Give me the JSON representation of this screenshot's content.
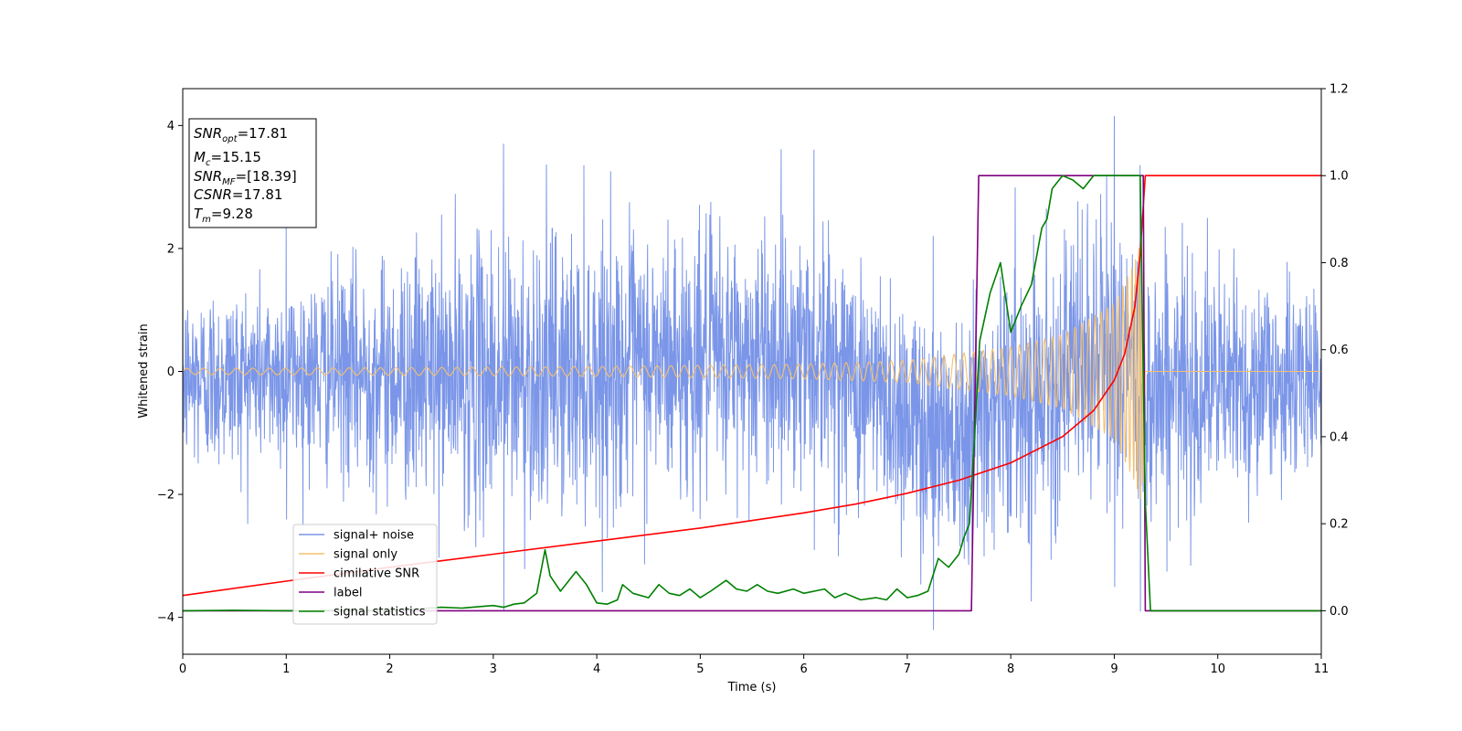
{
  "chart_data": {
    "type": "line",
    "xlabel": "Time (s)",
    "ylabel": "Whitened strain",
    "xlim": [
      0,
      11
    ],
    "ylim_left": [
      -4.6,
      4.6
    ],
    "ylim_right": [
      -0.1,
      1.2
    ],
    "x_ticks": [
      "0",
      "1",
      "2",
      "3",
      "4",
      "5",
      "6",
      "7",
      "8",
      "9",
      "10",
      "11"
    ],
    "y_ticks_left": [
      "−4",
      "−2",
      "0",
      "2",
      "4"
    ],
    "y_ticks_right": [
      "0.0",
      "0.2",
      "0.4",
      "0.6",
      "0.8",
      "1.0",
      "1.2"
    ],
    "legend_placement": "lower-left",
    "info_box": {
      "snr_opt": {
        "base": "SNR",
        "sub": "opt",
        "value": "=17.81"
      },
      "mc": {
        "base": "M",
        "sub": "c",
        "value": "=15.15"
      },
      "snr_mf": {
        "base": "SNR",
        "sub": "MF",
        "value": "=[18.39]"
      },
      "csnr": {
        "base": "CSNR",
        "value": "=17.81"
      },
      "tm": {
        "base": "T",
        "sub": "m",
        "value": "=9.28"
      }
    },
    "series": [
      {
        "name": "signal+ noise",
        "axis": "left",
        "color": "#7b96e8",
        "description": "noisy whitened strain, roughly within [-2.6, 2.6] with spikes to about 4.2 and -4.2",
        "envelope_points": [
          [
            0.0,
            -2.6,
            2.3
          ],
          [
            1.0,
            -2.4,
            2.4
          ],
          [
            3.1,
            -3.9,
            3.7
          ],
          [
            6.1,
            -2.9,
            3.6
          ],
          [
            7.25,
            -4.2,
            2.2
          ],
          [
            9.0,
            -3.5,
            4.15
          ],
          [
            9.25,
            -3.9,
            3.35
          ],
          [
            11.0,
            -2.4,
            2.1
          ]
        ]
      },
      {
        "name": "signal only",
        "axis": "left",
        "color": "#f5c06e",
        "description": "chirp waveform: amplitude grows from ~0.05 at t=0 to ~2.2 near t=9.25, then zero",
        "amplitude_points": [
          [
            0,
            0.05
          ],
          [
            2,
            0.06
          ],
          [
            4,
            0.08
          ],
          [
            6,
            0.12
          ],
          [
            7,
            0.18
          ],
          [
            8,
            0.4
          ],
          [
            8.5,
            0.6
          ],
          [
            9.0,
            1.1
          ],
          [
            9.2,
            1.8
          ],
          [
            9.27,
            2.2
          ],
          [
            9.3,
            0.0
          ],
          [
            11,
            0.0
          ]
        ]
      },
      {
        "name": "cimilative SNR",
        "axis": "right",
        "color": "#ff0000",
        "x": [
          0,
          1,
          2,
          3,
          4,
          5,
          6,
          6.5,
          7,
          7.5,
          8,
          8.5,
          8.8,
          9.0,
          9.1,
          9.2,
          9.25,
          9.28,
          9.3,
          11
        ],
        "y": [
          0.035,
          0.068,
          0.1,
          0.13,
          0.16,
          0.19,
          0.225,
          0.245,
          0.27,
          0.3,
          0.34,
          0.4,
          0.46,
          0.53,
          0.59,
          0.7,
          0.82,
          0.93,
          1.0,
          1.0
        ]
      },
      {
        "name": "label",
        "axis": "right",
        "color": "#800080",
        "x": [
          0,
          7.62,
          7.69,
          9.28,
          9.3,
          11
        ],
        "y": [
          0,
          0,
          1,
          1,
          0,
          0
        ]
      },
      {
        "name": "signal statistics",
        "axis": "right",
        "color": "#008000",
        "x": [
          0,
          0.5,
          1.0,
          1.5,
          2.0,
          2.3,
          2.5,
          2.7,
          2.9,
          3.0,
          3.1,
          3.2,
          3.3,
          3.42,
          3.5,
          3.55,
          3.65,
          3.8,
          3.9,
          4.0,
          4.1,
          4.2,
          4.25,
          4.35,
          4.5,
          4.6,
          4.7,
          4.8,
          4.9,
          5.0,
          5.1,
          5.25,
          5.35,
          5.45,
          5.55,
          5.65,
          5.75,
          5.9,
          6.0,
          6.1,
          6.2,
          6.3,
          6.4,
          6.55,
          6.7,
          6.8,
          6.9,
          7.0,
          7.1,
          7.2,
          7.3,
          7.4,
          7.5,
          7.55,
          7.6,
          7.65,
          7.7,
          7.8,
          7.9,
          7.95,
          8.0,
          8.1,
          8.2,
          8.3,
          8.35,
          8.4,
          8.5,
          8.6,
          8.7,
          8.8,
          9.0,
          9.25,
          9.3,
          9.35,
          9.4,
          11
        ],
        "y": [
          0.0,
          0.001,
          0.0,
          0.001,
          0.0,
          0.005,
          0.008,
          0.006,
          0.01,
          0.012,
          0.008,
          0.015,
          0.018,
          0.04,
          0.14,
          0.08,
          0.045,
          0.09,
          0.06,
          0.018,
          0.015,
          0.025,
          0.06,
          0.04,
          0.03,
          0.06,
          0.04,
          0.035,
          0.05,
          0.03,
          0.045,
          0.07,
          0.05,
          0.045,
          0.06,
          0.045,
          0.04,
          0.05,
          0.04,
          0.045,
          0.05,
          0.03,
          0.04,
          0.025,
          0.03,
          0.025,
          0.05,
          0.03,
          0.035,
          0.045,
          0.12,
          0.1,
          0.13,
          0.17,
          0.2,
          0.4,
          0.62,
          0.73,
          0.8,
          0.72,
          0.64,
          0.7,
          0.75,
          0.88,
          0.9,
          0.97,
          1.0,
          0.99,
          0.97,
          1.0,
          1.0,
          1.0,
          0.25,
          0.0,
          0.0,
          0.0
        ]
      }
    ]
  }
}
